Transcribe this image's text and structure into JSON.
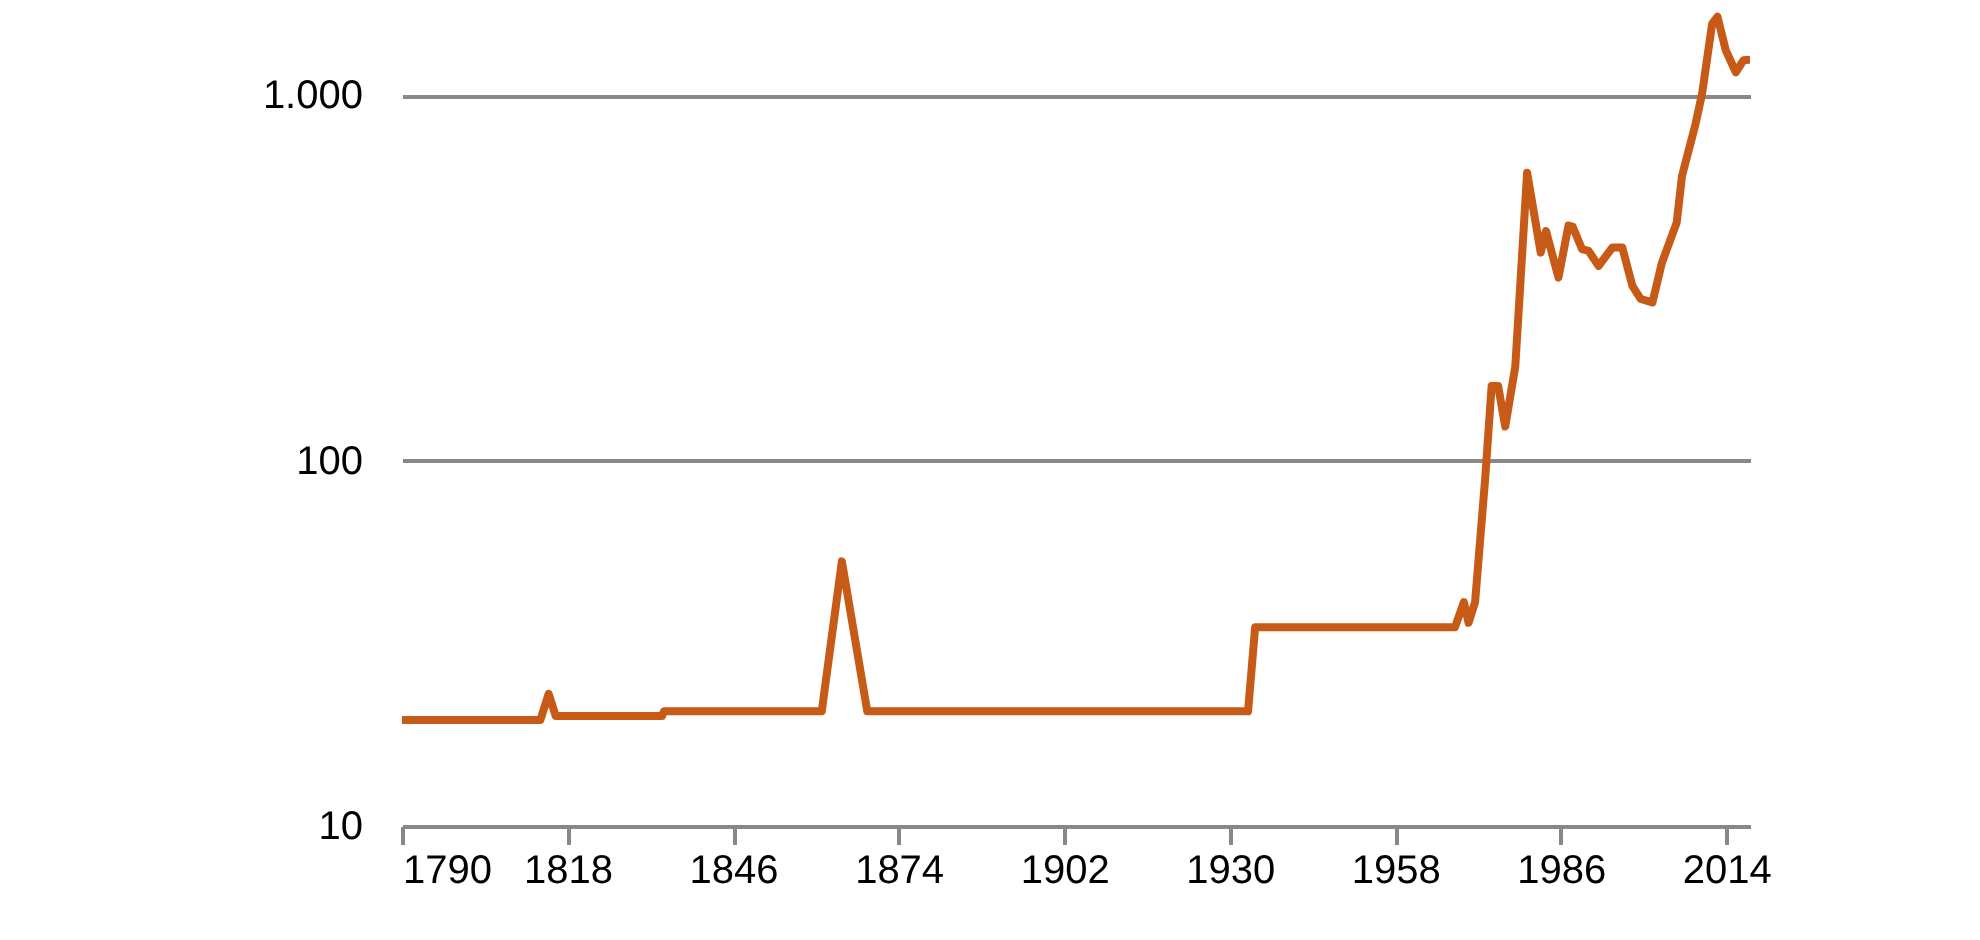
{
  "chart_data": {
    "type": "line",
    "log": "y",
    "grid": "y",
    "xlim": [
      1790,
      2018
    ],
    "xticks": [
      1790,
      1818,
      1846,
      1874,
      1902,
      1930,
      1958,
      1986,
      2014
    ],
    "ylim": [
      10,
      1800
    ],
    "yticks": [
      10,
      100,
      {
        "value": 1000,
        "label": "1.000"
      }
    ],
    "series": [
      {
        "color": "#c85a17",
        "x": [
          1790,
          1813.4,
          1814.8,
          1816,
          1834,
          1834.3,
          1861,
          1864.4,
          1868.7,
          1933.1,
          1934.3,
          1968.1,
          1969.6,
          1970.4,
          1971.5,
          1973.2,
          1974.3,
          1975.4,
          1976.6,
          1978.3,
          1980.3,
          1982.6,
          1983.5,
          1985.6,
          1987.3,
          1988,
          1989.6,
          1990.7,
          1992.4,
          1994.7,
          1996.4,
          1998.1,
          1999.5,
          2001.5,
          2003.1,
          2005.6,
          2006.5,
          2008.8,
          2009.9,
          2011.6,
          2012.5,
          2013.9,
          2015.6,
          2016.9,
          2017.8
        ],
        "values": [
          19.5,
          19.5,
          23,
          20,
          20,
          20.6,
          20.6,
          53,
          20.6,
          20.6,
          35,
          35,
          41,
          36,
          41,
          89,
          160,
          160,
          124,
          181,
          614,
          371,
          425,
          317,
          440,
          437,
          379,
          375,
          341,
          383,
          383,
          301,
          277,
          271,
          348,
          448,
          601,
          836,
          1010,
          1571,
          1640,
          1328,
          1156,
          1247,
          1250
        ]
      }
    ]
  }
}
